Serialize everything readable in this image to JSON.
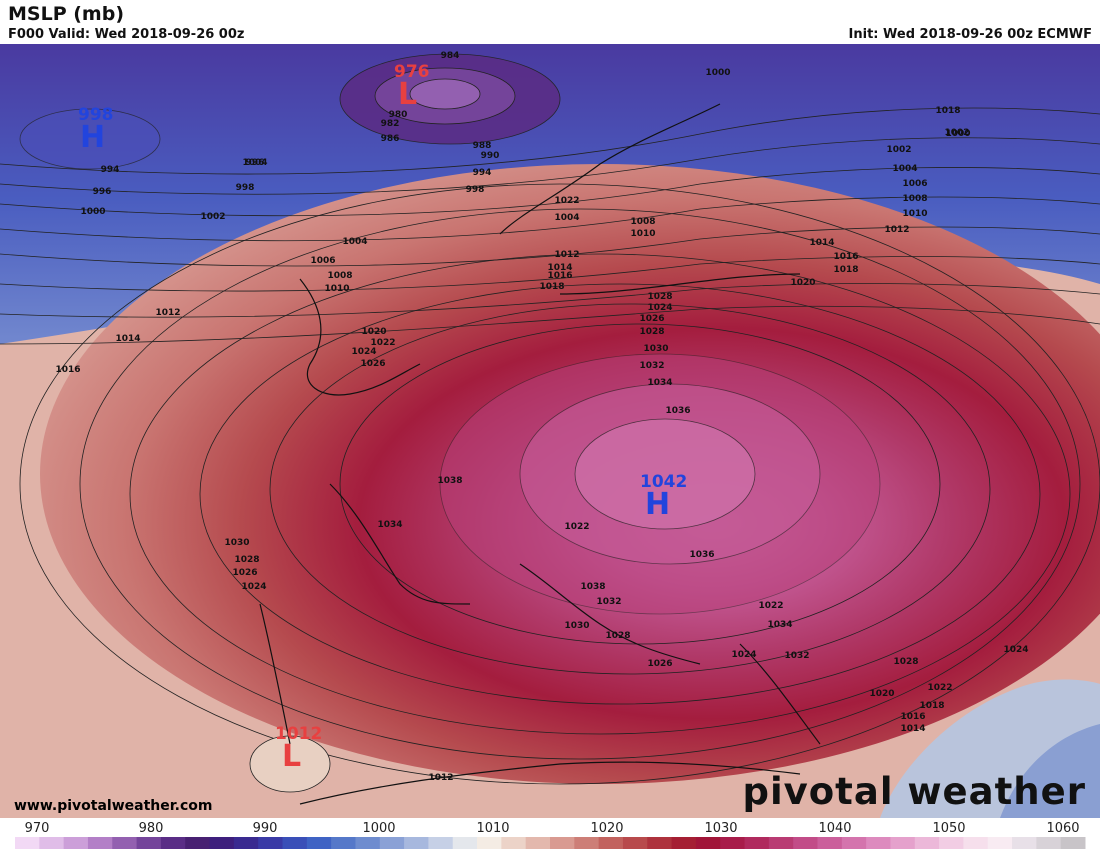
{
  "header": {
    "title": "MSLP (mb)",
    "subtitle": "F000 Valid: Wed 2018-09-26 00z",
    "init": "Init: Wed 2018-09-26 00z ECMWF"
  },
  "footer": {
    "source": "www.pivotalweather.com",
    "brand": "pivotal weather"
  },
  "pressure_centers": [
    {
      "type": "L",
      "value": "976",
      "color": "#e84040"
    },
    {
      "type": "H",
      "value": "998",
      "color": "#2244dd"
    },
    {
      "type": "H",
      "value": "1042",
      "color": "#2244dd"
    },
    {
      "type": "L",
      "value": "1012",
      "color": "#e84040"
    }
  ],
  "isobar_labels": [
    "984",
    "980",
    "982",
    "986",
    "988",
    "990",
    "994",
    "994",
    "996",
    "998",
    "1000",
    "1002",
    "1004",
    "996",
    "998",
    "1000",
    "1002",
    "1004",
    "1006",
    "1008",
    "1010",
    "1012",
    "1014",
    "1016",
    "1018",
    "1000",
    "1002",
    "1004",
    "1006",
    "1008",
    "1010",
    "1012",
    "1014",
    "1016",
    "1018",
    "1020",
    "1022",
    "1004",
    "1008",
    "1010",
    "1012",
    "1014",
    "1016",
    "1018",
    "1020",
    "1022",
    "1024",
    "1026",
    "1028",
    "1024",
    "1026",
    "1028",
    "1030",
    "1032",
    "1034",
    "1036",
    "1038",
    "1034",
    "1030",
    "1028",
    "1026",
    "1024",
    "1022",
    "1036",
    "1038",
    "1032",
    "1030",
    "1028",
    "1026",
    "1024",
    "1022",
    "1034",
    "1032",
    "1028",
    "1024",
    "1022",
    "1020",
    "1018",
    "1016",
    "1014",
    "1012",
    "1022"
  ],
  "legend": {
    "ticks": [
      "970",
      "980",
      "990",
      "1000",
      "1010",
      "1020",
      "1030",
      "1040",
      "1050",
      "1060"
    ],
    "colors": [
      "#f2d9f5",
      "#e0bde8",
      "#cc9fd9",
      "#b37fc7",
      "#9360b0",
      "#74449a",
      "#5a2d86",
      "#482072",
      "#3e1f7d",
      "#3a2a90",
      "#3a3aa6",
      "#3a4fb8",
      "#3f63c4",
      "#5578c9",
      "#6e8ccf",
      "#8aa1d6",
      "#a7b8de",
      "#c6d0e6",
      "#e4e7ec",
      "#f4ece4",
      "#ecd3c8",
      "#e3b8ad",
      "#d99a91",
      "#cd7e77",
      "#c2625e",
      "#b84a4c",
      "#ae323d",
      "#a51f33",
      "#a11538",
      "#a81c4a",
      "#b02a5e",
      "#b93b73",
      "#c24c88",
      "#cb5f9b",
      "#d474ad",
      "#dd8abe",
      "#e5a1cc",
      "#ecb8d9",
      "#f2cde4",
      "#f6dfec",
      "#f8ebf2",
      "#e8e0e8",
      "#d8d2d8",
      "#c8c4c8"
    ]
  },
  "colors": {
    "low_label": "#e84040",
    "high_label": "#2244dd",
    "coast": "#111111"
  }
}
